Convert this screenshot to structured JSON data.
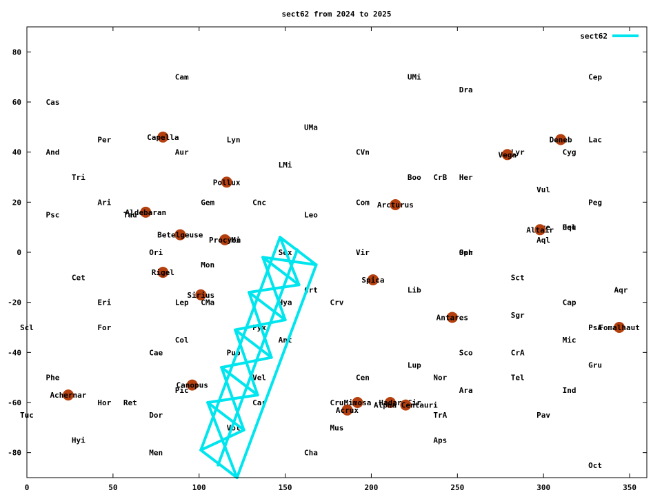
{
  "chart_data": {
    "type": "scatter",
    "title": "sect62 from 2024 to 2025",
    "xlabel": "",
    "ylabel": "",
    "xlim": [
      0,
      360
    ],
    "ylim": [
      -90,
      90
    ],
    "x_ticks": [
      0,
      50,
      100,
      150,
      200,
      250,
      300,
      350
    ],
    "y_ticks": [
      -80,
      -60,
      -40,
      -20,
      0,
      20,
      40,
      60,
      80
    ],
    "grid": false,
    "legend": {
      "position": "top-right",
      "entries": [
        {
          "name": "sect62",
          "color": "#00e5ee"
        }
      ]
    },
    "colors": {
      "series": "#00e5ee",
      "star": "#b5400f"
    },
    "constellations": [
      {
        "label": "Cam",
        "x": 90,
        "y": 70
      },
      {
        "label": "UMi",
        "x": 225,
        "y": 70
      },
      {
        "label": "Cep",
        "x": 330,
        "y": 70
      },
      {
        "label": "Dra",
        "x": 255,
        "y": 65
      },
      {
        "label": "Cas",
        "x": 15,
        "y": 60
      },
      {
        "label": "UMa",
        "x": 165,
        "y": 50
      },
      {
        "label": "Per",
        "x": 45,
        "y": 45
      },
      {
        "label": "Lyn",
        "x": 120,
        "y": 45
      },
      {
        "label": "Lac",
        "x": 330,
        "y": 45
      },
      {
        "label": "And",
        "x": 15,
        "y": 40
      },
      {
        "label": "Aur",
        "x": 90,
        "y": 40
      },
      {
        "label": "CVn",
        "x": 195,
        "y": 40
      },
      {
        "label": "Lyr",
        "x": 285,
        "y": 40
      },
      {
        "label": "Cyg",
        "x": 315,
        "y": 40
      },
      {
        "label": "LMi",
        "x": 150,
        "y": 35
      },
      {
        "label": "Tri",
        "x": 30,
        "y": 30
      },
      {
        "label": "Boo",
        "x": 225,
        "y": 30
      },
      {
        "label": "CrB",
        "x": 240,
        "y": 30
      },
      {
        "label": "Her",
        "x": 255,
        "y": 30
      },
      {
        "label": "Vul",
        "x": 300,
        "y": 25
      },
      {
        "label": "Ari",
        "x": 45,
        "y": 20
      },
      {
        "label": "Gem",
        "x": 105,
        "y": 20
      },
      {
        "label": "Cnc",
        "x": 135,
        "y": 20
      },
      {
        "label": "Com",
        "x": 195,
        "y": 20
      },
      {
        "label": "Peg",
        "x": 330,
        "y": 20
      },
      {
        "label": "Psc",
        "x": 15,
        "y": 15
      },
      {
        "label": "Tau",
        "x": 60,
        "y": 15
      },
      {
        "label": "Leo",
        "x": 165,
        "y": 15
      },
      {
        "label": "Sge",
        "x": 300,
        "y": 10
      },
      {
        "label": "Equ",
        "x": 315,
        "y": 10
      },
      {
        "label": "Del",
        "x": 315,
        "y": 10
      },
      {
        "label": "Aql",
        "x": 300,
        "y": 5
      },
      {
        "label": "CMi",
        "x": 120,
        "y": 5
      },
      {
        "label": "Ori",
        "x": 75,
        "y": 0
      },
      {
        "label": "Sex",
        "x": 150,
        "y": 0
      },
      {
        "label": "Vir",
        "x": 195,
        "y": 0
      },
      {
        "label": "Oph",
        "x": 255,
        "y": 0
      },
      {
        "label": "Ser",
        "x": 255,
        "y": 0
      },
      {
        "label": "Mon",
        "x": 105,
        "y": -5
      },
      {
        "label": "Cet",
        "x": 30,
        "y": -10
      },
      {
        "label": "Sct",
        "x": 285,
        "y": -10
      },
      {
        "label": "Crt",
        "x": 165,
        "y": -15
      },
      {
        "label": "Lib",
        "x": 225,
        "y": -15
      },
      {
        "label": "Aqr",
        "x": 345,
        "y": -15
      },
      {
        "label": "Eri",
        "x": 45,
        "y": -20
      },
      {
        "label": "Lep",
        "x": 90,
        "y": -20
      },
      {
        "label": "CMa",
        "x": 105,
        "y": -20
      },
      {
        "label": "Hya",
        "x": 150,
        "y": -20
      },
      {
        "label": "Crv",
        "x": 180,
        "y": -20
      },
      {
        "label": "Cap",
        "x": 315,
        "y": -20
      },
      {
        "label": "Sgr",
        "x": 285,
        "y": -25
      },
      {
        "label": "Scl",
        "x": 0,
        "y": -30
      },
      {
        "label": "For",
        "x": 45,
        "y": -30
      },
      {
        "label": "Pyx",
        "x": 135,
        "y": -30
      },
      {
        "label": "PsA",
        "x": 330,
        "y": -30
      },
      {
        "label": "Col",
        "x": 90,
        "y": -35
      },
      {
        "label": "Ant",
        "x": 150,
        "y": -35
      },
      {
        "label": "Mic",
        "x": 315,
        "y": -35
      },
      {
        "label": "Cae",
        "x": 75,
        "y": -40
      },
      {
        "label": "Pup",
        "x": 120,
        "y": -40
      },
      {
        "label": "Sco",
        "x": 255,
        "y": -40
      },
      {
        "label": "CrA",
        "x": 285,
        "y": -40
      },
      {
        "label": "Gru",
        "x": 330,
        "y": -45
      },
      {
        "label": "Phe",
        "x": 15,
        "y": -50
      },
      {
        "label": "Vel",
        "x": 135,
        "y": -50
      },
      {
        "label": "Cen",
        "x": 195,
        "y": -50
      },
      {
        "label": "Lup",
        "x": 225,
        "y": -45
      },
      {
        "label": "Nor",
        "x": 240,
        "y": -50
      },
      {
        "label": "Tel",
        "x": 285,
        "y": -50
      },
      {
        "label": "Pic",
        "x": 90,
        "y": -55
      },
      {
        "label": "Ara",
        "x": 255,
        "y": -55
      },
      {
        "label": "Ind",
        "x": 315,
        "y": -55
      },
      {
        "label": "Hor",
        "x": 45,
        "y": -60
      },
      {
        "label": "Ret",
        "x": 60,
        "y": -60
      },
      {
        "label": "Car",
        "x": 135,
        "y": -60
      },
      {
        "label": "Cru",
        "x": 180,
        "y": -60
      },
      {
        "label": "Cir",
        "x": 225,
        "y": -60
      },
      {
        "label": "Tuc",
        "x": 0,
        "y": -65
      },
      {
        "label": "Dor",
        "x": 75,
        "y": -65
      },
      {
        "label": "TrA",
        "x": 240,
        "y": -65
      },
      {
        "label": "Pav",
        "x": 300,
        "y": -65
      },
      {
        "label": "Vol",
        "x": 120,
        "y": -70
      },
      {
        "label": "Mus",
        "x": 180,
        "y": -70
      },
      {
        "label": "Hyi",
        "x": 30,
        "y": -75
      },
      {
        "label": "Aps",
        "x": 240,
        "y": -75
      },
      {
        "label": "Men",
        "x": 75,
        "y": -80
      },
      {
        "label": "Cha",
        "x": 165,
        "y": -80
      },
      {
        "label": "Oct",
        "x": 330,
        "y": -85
      }
    ],
    "stars": [
      {
        "name": "Capella",
        "x": 79,
        "y": 46
      },
      {
        "name": "Deneb",
        "x": 310,
        "y": 45
      },
      {
        "name": "Vega",
        "x": 279,
        "y": 39
      },
      {
        "name": "Pollux",
        "x": 116,
        "y": 28
      },
      {
        "name": "Arcturus",
        "x": 214,
        "y": 19
      },
      {
        "name": "Aldebaran",
        "x": 69,
        "y": 16
      },
      {
        "name": "Altair",
        "x": 298,
        "y": 9
      },
      {
        "name": "Betelgeuse",
        "x": 89,
        "y": 7
      },
      {
        "name": "Procyon",
        "x": 115,
        "y": 5
      },
      {
        "name": "Rigel",
        "x": 79,
        "y": -8
      },
      {
        "name": "Spica",
        "x": 201,
        "y": -11
      },
      {
        "name": "Sirius",
        "x": 101,
        "y": -17
      },
      {
        "name": "Antares",
        "x": 247,
        "y": -26
      },
      {
        "name": "Fomalhaut",
        "x": 344,
        "y": -30
      },
      {
        "name": "Canopus",
        "x": 96,
        "y": -53
      },
      {
        "name": "Achernar",
        "x": 24,
        "y": -57
      },
      {
        "name": "Mimosa",
        "x": 192,
        "y": -60
      },
      {
        "name": "Hadar",
        "x": 211,
        "y": -60
      },
      {
        "name": "Alpha Centauri",
        "x": 220,
        "y": -61
      },
      {
        "name": "Acrux",
        "x": 186,
        "y": -63
      }
    ],
    "series": [
      {
        "name": "sect62",
        "segments": [
          [
            [
              147,
              6
            ],
            [
              168,
              -5
            ]
          ],
          [
            [
              168,
              -5
            ],
            [
              122,
              -90
            ]
          ],
          [
            [
              122,
              -90
            ],
            [
              101,
              -79
            ]
          ],
          [
            [
              101,
              -79
            ],
            [
              147,
              6
            ]
          ],
          [
            [
              157,
              1
            ],
            [
              111,
              -85
            ]
          ],
          [
            [
              158,
              -13
            ],
            [
              137,
              -2
            ]
          ],
          [
            [
              150,
              -27
            ],
            [
              129,
              -16
            ]
          ],
          [
            [
              142,
              -42
            ],
            [
              121,
              -31
            ]
          ],
          [
            [
              134,
              -57
            ],
            [
              113,
              -46
            ]
          ],
          [
            [
              126,
              -71
            ],
            [
              105,
              -60
            ]
          ],
          [
            [
              147,
              6
            ],
            [
              158,
              -13
            ]
          ],
          [
            [
              168,
              -5
            ],
            [
              137,
              -2
            ]
          ],
          [
            [
              137,
              -2
            ],
            [
              150,
              -27
            ]
          ],
          [
            [
              158,
              -13
            ],
            [
              129,
              -16
            ]
          ],
          [
            [
              129,
              -16
            ],
            [
              142,
              -42
            ]
          ],
          [
            [
              150,
              -27
            ],
            [
              121,
              -31
            ]
          ],
          [
            [
              121,
              -31
            ],
            [
              134,
              -57
            ]
          ],
          [
            [
              142,
              -42
            ],
            [
              113,
              -46
            ]
          ],
          [
            [
              113,
              -46
            ],
            [
              126,
              -71
            ]
          ],
          [
            [
              134,
              -57
            ],
            [
              105,
              -60
            ]
          ],
          [
            [
              105,
              -60
            ],
            [
              122,
              -90
            ]
          ],
          [
            [
              126,
              -71
            ],
            [
              101,
              -79
            ]
          ]
        ]
      }
    ]
  }
}
